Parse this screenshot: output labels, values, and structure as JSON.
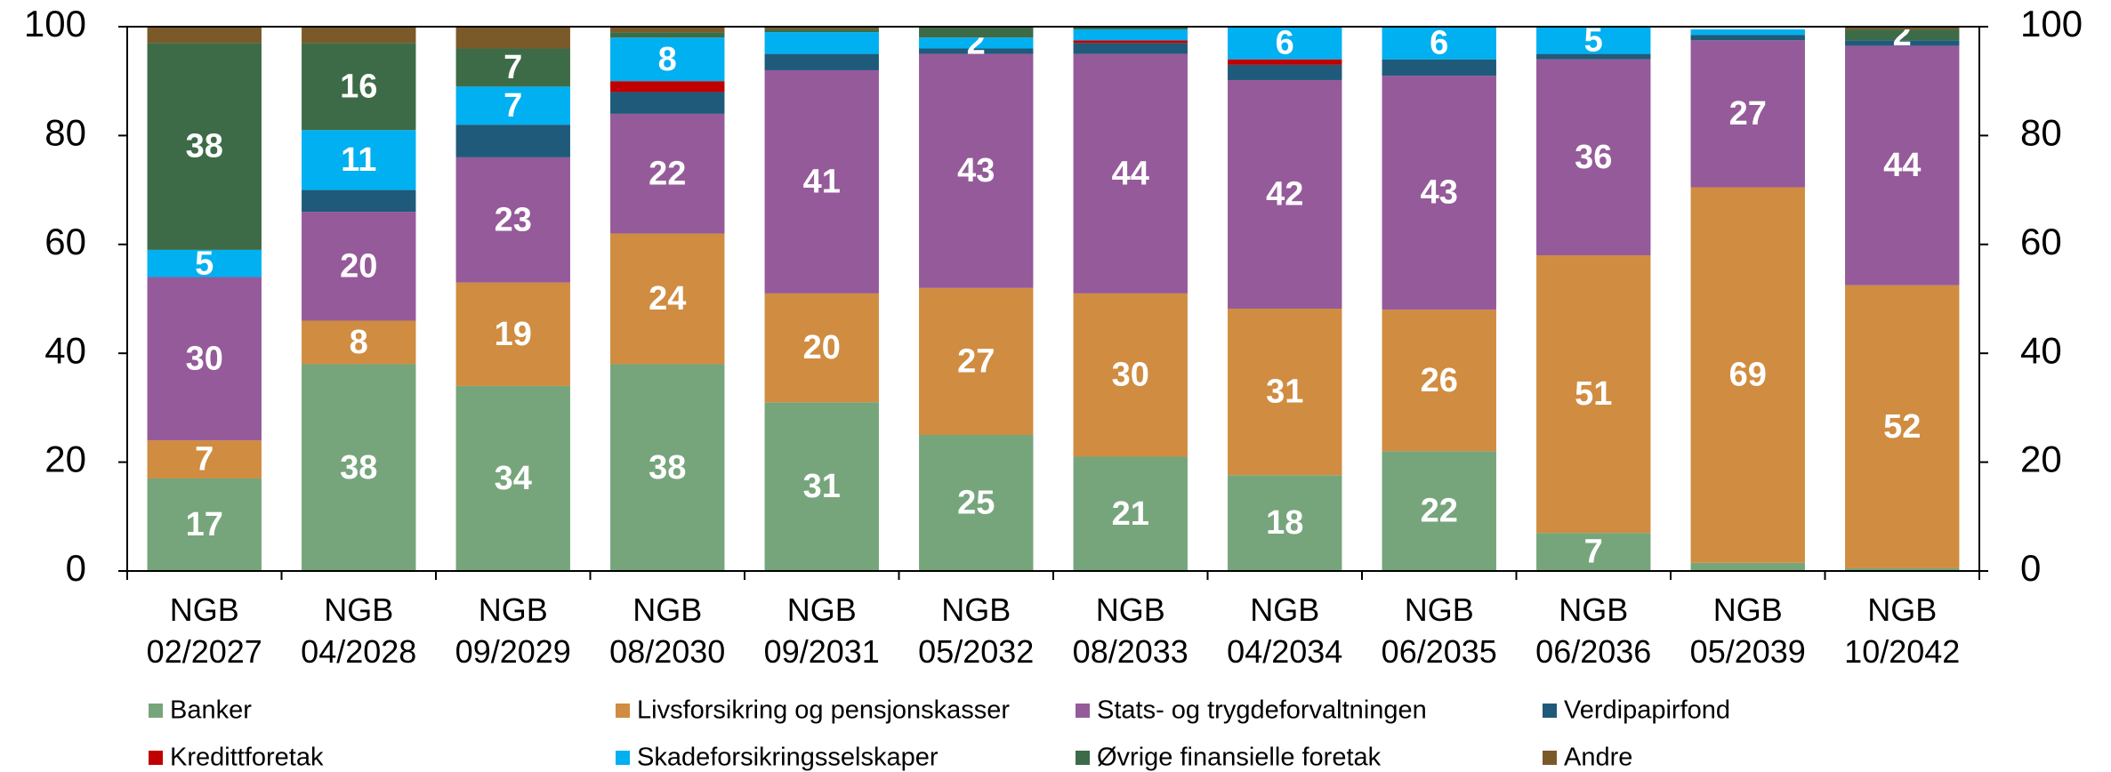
{
  "chart_data": {
    "type": "stacked_bar",
    "categories": [
      "NGB 02/2027",
      "NGB 04/2028",
      "NGB 09/2029",
      "NGB 08/2030",
      "NGB 09/2031",
      "NGB 05/2032",
      "NGB 08/2033",
      "NGB 04/2034",
      "NGB 06/2035",
      "NGB 06/2036",
      "NGB 05/2039",
      "NGB 10/2042"
    ],
    "ylim": [
      0,
      100
    ],
    "yticks": [
      0,
      20,
      40,
      60,
      80,
      100
    ],
    "series": [
      {
        "name": "Banker",
        "color": "#76a57b",
        "values": [
          17,
          38,
          34,
          38,
          31,
          25,
          21,
          17.6,
          22,
          7,
          1.5,
          0.5
        ],
        "value_labels": [
          "17",
          "38",
          "34",
          "38",
          "31",
          "25",
          "21",
          "18",
          "22",
          "7",
          null,
          null
        ]
      },
      {
        "name": "Livsforsikring og pensjonskasser",
        "color": "#d08c40",
        "values": [
          7,
          8,
          19,
          24,
          20,
          27,
          30,
          30.6,
          26,
          51,
          69,
          52
        ],
        "value_labels": [
          "7",
          "8",
          "19",
          "24",
          "20",
          "27",
          "30",
          "31",
          "26",
          "51",
          "69",
          "52"
        ]
      },
      {
        "name": "Stats- og trygdeforvaltningen",
        "color": "#955a9a",
        "values": [
          30,
          20,
          23,
          22,
          41,
          43,
          44,
          42,
          43,
          36,
          27,
          44
        ],
        "value_labels": [
          "30",
          "20",
          "23",
          "22",
          "41",
          "43",
          "44",
          "42",
          "43",
          "36",
          "27",
          "44"
        ]
      },
      {
        "name": "Verdipapirfond",
        "color": "#1f5a7a",
        "values": [
          0,
          4,
          6,
          4,
          3,
          1,
          2,
          2.8,
          3,
          1,
          1,
          1
        ],
        "value_labels": [
          null,
          null,
          null,
          null,
          null,
          null,
          null,
          null,
          null,
          null,
          null,
          null
        ]
      },
      {
        "name": "Kredittforetak",
        "color": "#c00000",
        "values": [
          0,
          0,
          0,
          2,
          0,
          0,
          0.5,
          1,
          0,
          0,
          0,
          0
        ],
        "value_labels": [
          null,
          null,
          null,
          null,
          null,
          null,
          null,
          null,
          null,
          null,
          null,
          null
        ]
      },
      {
        "name": "Skadeforsikringsselskaper",
        "color": "#00b0f0",
        "values": [
          5,
          11,
          7,
          8,
          4,
          2,
          2,
          6,
          6,
          5,
          1,
          0
        ],
        "value_labels": [
          "5",
          "11",
          "7",
          "8",
          null,
          "2",
          null,
          "6",
          "6",
          "5",
          null,
          null
        ]
      },
      {
        "name": "Øvrige finansielle foretak",
        "color": "#3d6b47",
        "values": [
          38,
          16,
          7,
          1,
          0.5,
          2,
          0.5,
          0,
          0,
          0,
          0,
          2
        ],
        "value_labels": [
          "38",
          "16",
          "7",
          null,
          null,
          null,
          null,
          null,
          null,
          null,
          null,
          "2"
        ]
      },
      {
        "name": "Andre",
        "color": "#7b5a2a",
        "values": [
          3,
          3,
          4,
          1,
          0.5,
          0,
          0,
          0,
          0,
          0,
          0,
          0.5
        ],
        "value_labels": [
          null,
          null,
          null,
          null,
          null,
          null,
          null,
          null,
          null,
          null,
          null,
          null
        ]
      }
    ]
  }
}
